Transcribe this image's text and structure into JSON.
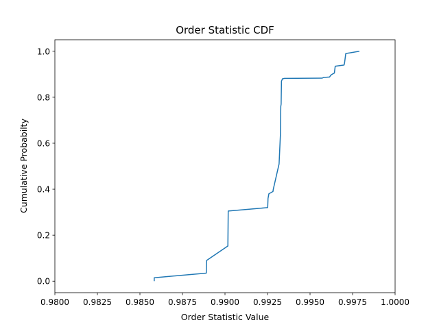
{
  "chart_data": {
    "type": "line",
    "title": "Order Statistic CDF",
    "xlabel": "Order Statistic Value",
    "ylabel": "Cumulative Probabilty",
    "xlim": [
      0.98,
      1.0
    ],
    "ylim": [
      -0.05,
      1.05
    ],
    "x_ticks": [
      0.98,
      0.9825,
      0.985,
      0.9875,
      0.99,
      0.9925,
      0.995,
      0.9975,
      1.0
    ],
    "x_tick_labels": [
      "0.9800",
      "0.9825",
      "0.9850",
      "0.9875",
      "0.9900",
      "0.9925",
      "0.9950",
      "0.9975",
      "1.0000"
    ],
    "y_ticks": [
      0.0,
      0.2,
      0.4,
      0.6,
      0.8,
      1.0
    ],
    "y_tick_labels": [
      "0.0",
      "0.2",
      "0.4",
      "0.6",
      "0.8",
      "1.0"
    ],
    "grid": false,
    "series": [
      {
        "color": "#1f77b4",
        "x": [
          0.98584,
          0.98584,
          0.9889,
          0.98892,
          0.99017,
          0.99019,
          0.99251,
          0.99253,
          0.99258,
          0.99282,
          0.99284,
          0.99318,
          0.99326,
          0.99328,
          0.9933,
          0.99332,
          0.99338,
          0.9935,
          0.9957,
          0.9958,
          0.99615,
          0.99622,
          0.9963,
          0.99643,
          0.99648,
          0.997,
          0.99703,
          0.9971,
          0.9979
        ],
        "y": [
          0.0,
          0.015,
          0.035,
          0.09,
          0.153,
          0.305,
          0.32,
          0.36,
          0.38,
          0.39,
          0.4,
          0.51,
          0.64,
          0.76,
          0.77,
          0.87,
          0.88,
          0.882,
          0.883,
          0.886,
          0.888,
          0.896,
          0.9,
          0.905,
          0.935,
          0.94,
          0.95,
          0.99,
          1.0
        ]
      }
    ]
  }
}
